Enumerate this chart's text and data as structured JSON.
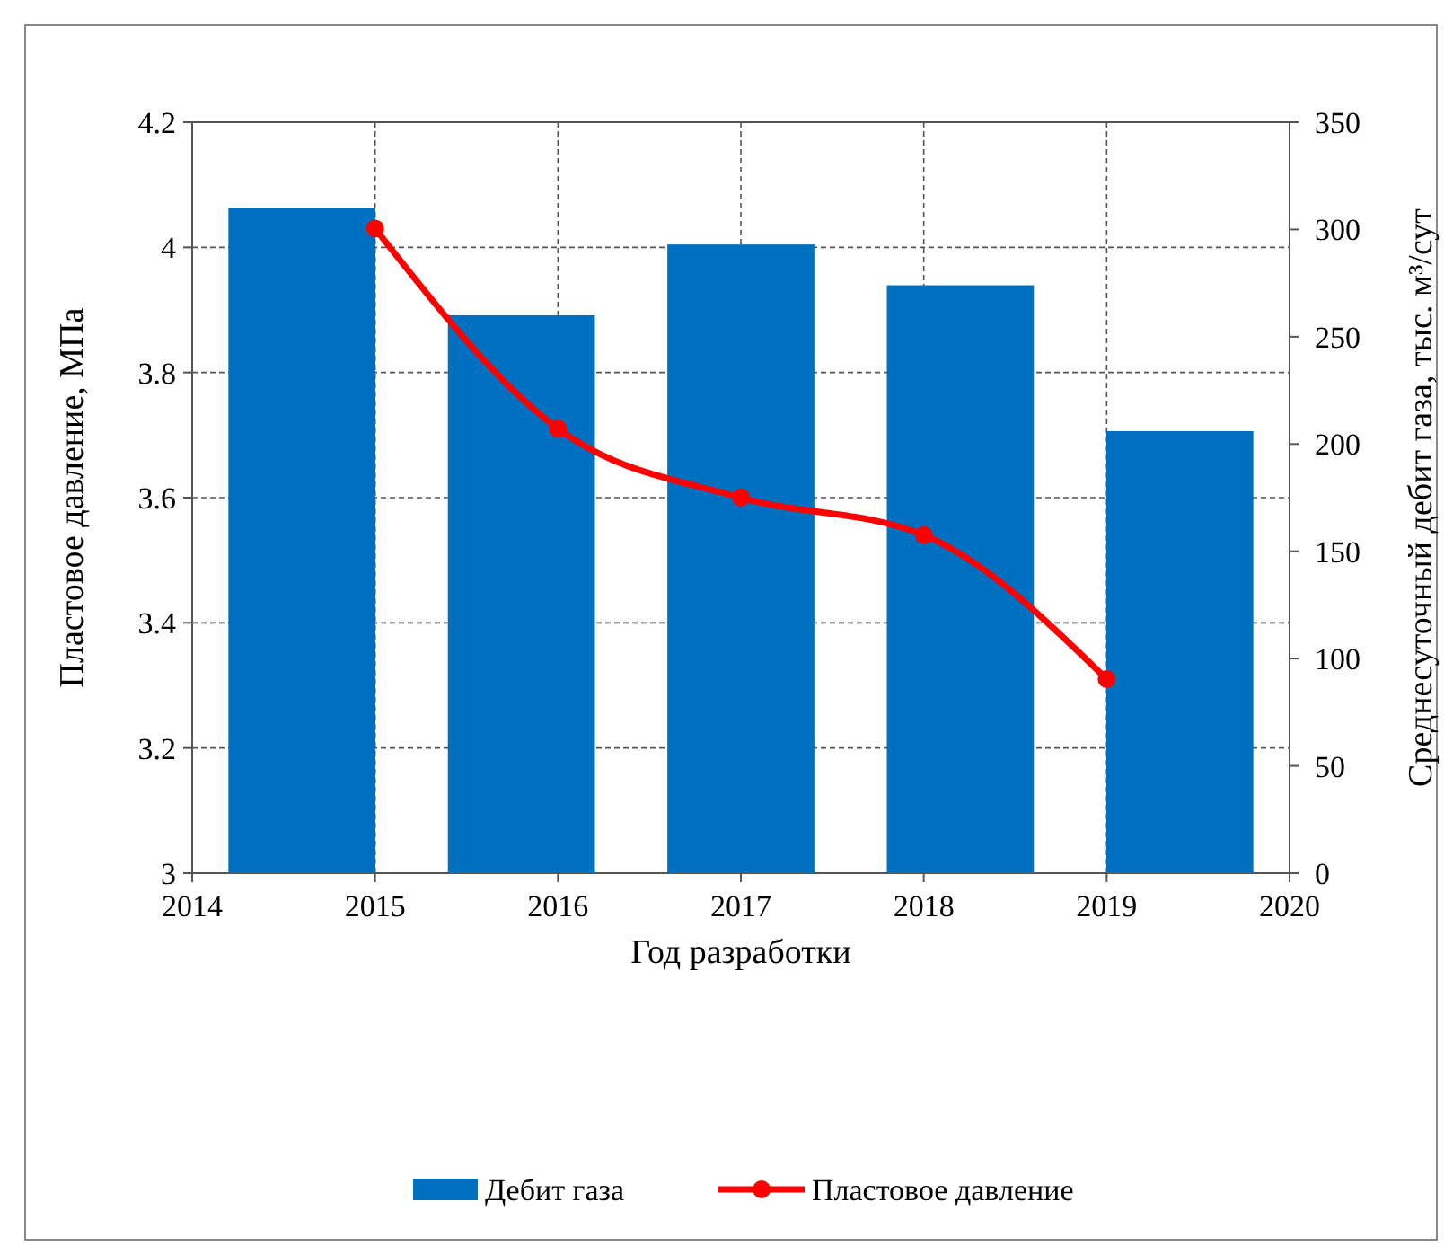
{
  "chart_data": {
    "type": "bar",
    "xlabel": "Год разработки",
    "ylabel": "Пластовое давление, МПа",
    "y2label": "Среднесуточный дебит газа, тыс. м³/сут",
    "xlim": [
      2014,
      2020
    ],
    "xticks": [
      2014,
      2015,
      2016,
      2017,
      2018,
      2019,
      2020
    ],
    "ylim": [
      3,
      4.2
    ],
    "yticks": [
      3,
      3.2,
      3.4,
      3.6,
      3.8,
      4,
      4.2
    ],
    "y2lim": [
      0,
      350
    ],
    "y2ticks": [
      0,
      50,
      100,
      150,
      200,
      250,
      300,
      350
    ],
    "grid": true,
    "legend": "bottom",
    "series": [
      {
        "name": "Дебит газа",
        "axis": "y2",
        "color": "#0070c0",
        "x": [
          2014.6,
          2015.8,
          2017,
          2018.2,
          2019.4
        ],
        "values": [
          310,
          260,
          293,
          274,
          206
        ]
      },
      {
        "name": "Пластовое давление",
        "type": "line",
        "axis": "y",
        "color": "#ff0000",
        "marker": "circle",
        "line_style": "solid",
        "x": [
          2015,
          2016,
          2017,
          2018,
          2019
        ],
        "values": [
          4.03,
          3.71,
          3.6,
          3.54,
          3.31
        ]
      }
    ]
  }
}
